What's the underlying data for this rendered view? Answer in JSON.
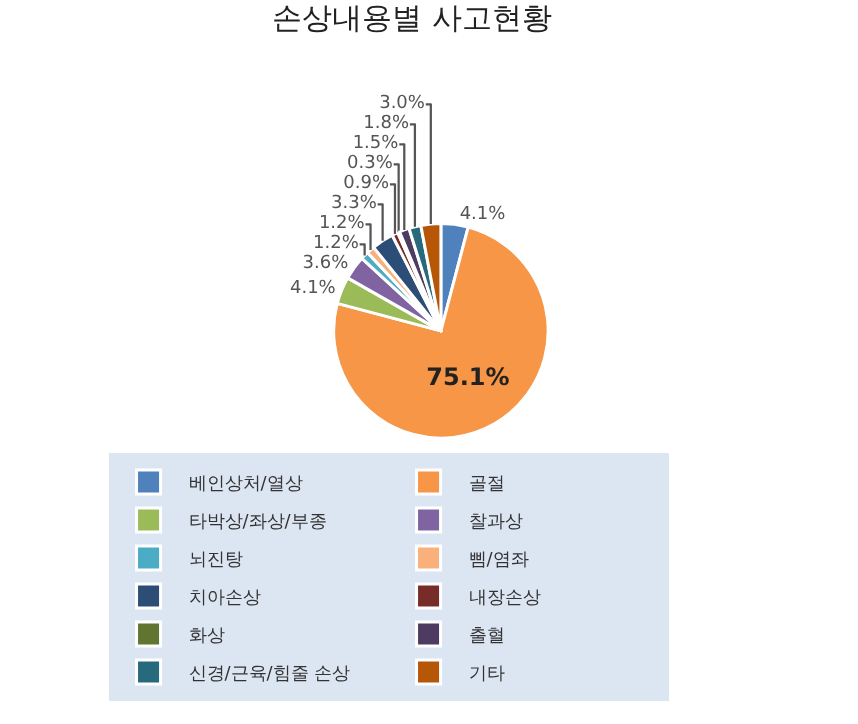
{
  "chart_data": {
    "type": "pie",
    "title": "손상내용별 사고현황",
    "categories": [
      "베인상처/열상",
      "골절",
      "타박상/좌상/부종",
      "찰과상",
      "뇌진탕",
      "삠/염좌",
      "치아손상",
      "내장손상",
      "화상",
      "출혈",
      "신경/근육/힘줄 손상",
      "기타"
    ],
    "values": [
      4.1,
      75.1,
      4.1,
      3.6,
      1.2,
      1.2,
      3.3,
      0.9,
      0.3,
      1.5,
      1.8,
      3.0
    ],
    "value_labels": [
      "4.1%",
      "75.1%",
      "4.1%",
      "3.6%",
      "1.2%",
      "1.2%",
      "3.3%",
      "0.9%",
      "0.3%",
      "1.5%",
      "1.8%",
      "3.0%"
    ],
    "colors": [
      "#4f81bd",
      "#f79646",
      "#9bbb59",
      "#8064a2",
      "#4bacc6",
      "#f9b07a",
      "#2c4d75",
      "#772c2a",
      "#5f7530",
      "#4d3b62",
      "#276a7c",
      "#b65708"
    ],
    "legend": "bottom"
  }
}
